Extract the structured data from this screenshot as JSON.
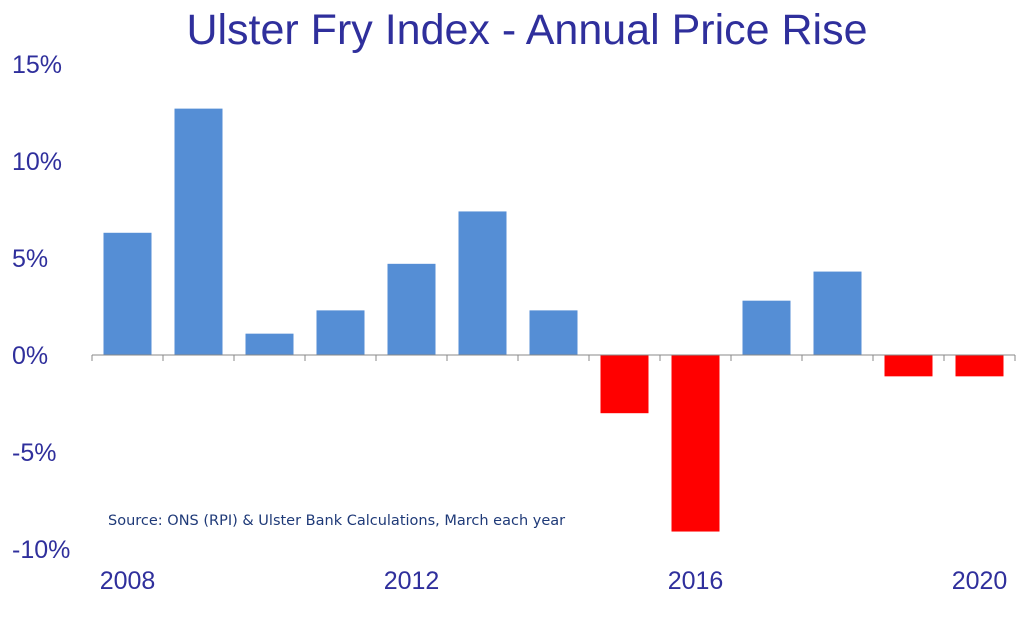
{
  "chart_data": {
    "type": "bar",
    "title": "Ulster Fry Index - Annual Price Rise",
    "xlabel": "",
    "ylabel": "",
    "ylim": [
      -10,
      15
    ],
    "yticks": [
      -10,
      -5,
      0,
      5,
      10,
      15
    ],
    "ytick_labels": [
      "-10%",
      "-5%",
      "0%",
      "5%",
      "10%",
      "15%"
    ],
    "categories": [
      "2008",
      "2009",
      "2010",
      "2011",
      "2012",
      "2013",
      "2014",
      "2015",
      "2016",
      "2017",
      "2018",
      "2019",
      "2020"
    ],
    "xtick_labels": [
      {
        "category": "2008",
        "label": "2008"
      },
      {
        "category": "2012",
        "label": "2012"
      },
      {
        "category": "2016",
        "label": "2016"
      },
      {
        "category": "2020",
        "label": "2020"
      }
    ],
    "values": [
      6.3,
      12.7,
      1.1,
      2.3,
      4.7,
      7.4,
      2.3,
      -3.0,
      -9.1,
      2.8,
      4.3,
      -1.1,
      -1.1
    ],
    "positive_color": "#558ED5",
    "negative_color": "#FF0000",
    "grid": false,
    "annotation": "Source: ONS (RPI) & Ulster Bank Calculations, March each year"
  }
}
